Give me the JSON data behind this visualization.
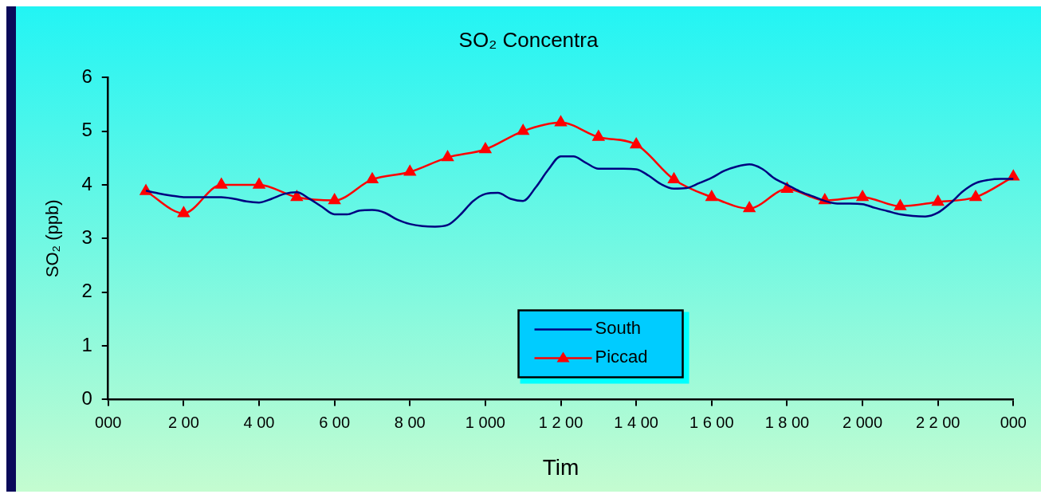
{
  "chart_data": {
    "type": "line",
    "title": "SO₂ Concentra",
    "xlabel": "Tim",
    "ylabel": "SO₂ (ppb)",
    "categories": [
      "000",
      null,
      null,
      null,
      null,
      null,
      "2 00",
      null,
      null,
      null,
      null,
      null,
      "4 00",
      null,
      null,
      null,
      null,
      null,
      "6 00",
      null,
      null,
      null,
      null,
      null,
      "8 00",
      null,
      null,
      null,
      null,
      null,
      "1 000",
      null,
      null,
      null,
      null,
      null,
      "1 2 00",
      null,
      null,
      null,
      null,
      null,
      "1 4 00",
      null,
      null,
      null,
      null,
      null,
      "1 6 00",
      null,
      null,
      null,
      null,
      null,
      "1 8 00",
      null,
      null,
      null,
      null,
      null,
      "2 000",
      null,
      null,
      null,
      null,
      null,
      "2 2 00",
      null,
      null,
      null,
      null,
      null,
      "000"
    ],
    "ylim": [
      0,
      6
    ],
    "yticks": [
      0,
      1,
      2,
      3,
      4,
      5,
      6
    ],
    "grid": false,
    "legend": "bottom",
    "series": [
      {
        "name": "South",
        "color": "#000080",
        "marker": "none",
        "values": [
          null,
          null,
          null,
          3.89,
          3.84,
          3.8,
          3.77,
          3.77,
          3.77,
          3.77,
          3.74,
          3.69,
          3.67,
          3.74,
          3.83,
          3.86,
          3.74,
          3.59,
          3.45,
          3.45,
          3.52,
          3.53,
          3.48,
          3.35,
          3.27,
          3.23,
          3.22,
          3.25,
          3.44,
          3.69,
          3.83,
          3.85,
          3.74,
          3.7,
          3.95,
          4.28,
          4.53,
          4.53,
          4.41,
          4.3,
          4.3,
          4.3,
          4.29,
          4.17,
          4.01,
          3.93,
          3.94,
          4.03,
          4.13,
          4.26,
          4.34,
          4.38,
          4.3,
          4.12,
          4.0,
          3.88,
          3.79,
          3.7,
          3.65,
          3.65,
          3.64,
          3.57,
          3.51,
          3.45,
          3.42,
          3.41,
          3.48,
          3.66,
          3.88,
          4.03,
          4.09,
          4.11,
          4.11
        ]
      },
      {
        "name": "Piccad",
        "color": "#ff0000",
        "marker": "triangle",
        "values": [
          null,
          null,
          null,
          3.88,
          null,
          null,
          3.47,
          null,
          null,
          4.0,
          null,
          null,
          4.0,
          null,
          null,
          3.77,
          null,
          null,
          3.71,
          null,
          null,
          4.1,
          null,
          null,
          4.24,
          null,
          null,
          4.51,
          null,
          null,
          4.66,
          null,
          null,
          5.0,
          null,
          null,
          5.16,
          null,
          null,
          4.89,
          null,
          null,
          4.75,
          null,
          null,
          4.1,
          null,
          null,
          3.77,
          null,
          null,
          3.56,
          null,
          null,
          3.92,
          null,
          null,
          3.71,
          null,
          null,
          3.77,
          null,
          null,
          3.6,
          null,
          null,
          3.68,
          null,
          null,
          3.77,
          null,
          null,
          4.15
        ]
      }
    ]
  }
}
